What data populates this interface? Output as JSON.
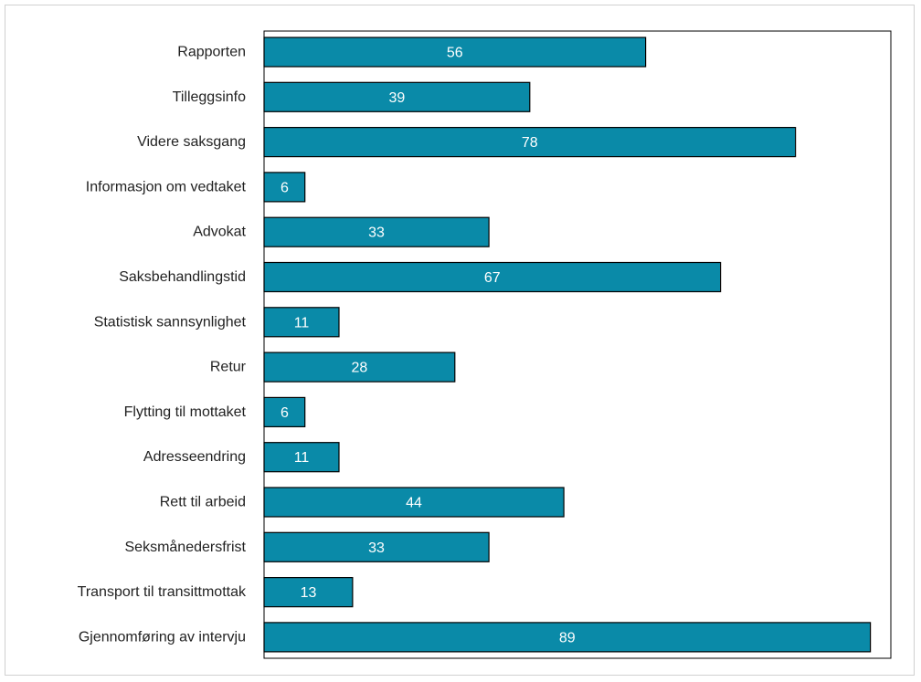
{
  "chart_data": {
    "type": "bar",
    "orientation": "horizontal",
    "title": "",
    "xlabel": "",
    "ylabel": "",
    "xlim": [
      0,
      92
    ],
    "grid": false,
    "legend": "none",
    "bar_color": "#0a8aa8",
    "bar_outline": "#000000",
    "label_color": "#ffffff",
    "categories": [
      "Rapporten",
      "Tilleggsinfo",
      "Videre saksgang",
      "Informasjon om vedtaket",
      "Advokat",
      "Saksbehandlingstid",
      "Statistisk sannsynlighet",
      "Retur",
      "Flytting til mottaket",
      "Adresseendring",
      "Rett til arbeid",
      "Seksmånedersfrist",
      "Transport til transittmottak",
      "Gjennomføring av intervju"
    ],
    "values": [
      56,
      39,
      78,
      6,
      33,
      67,
      11,
      28,
      6,
      11,
      44,
      33,
      13,
      89
    ]
  }
}
